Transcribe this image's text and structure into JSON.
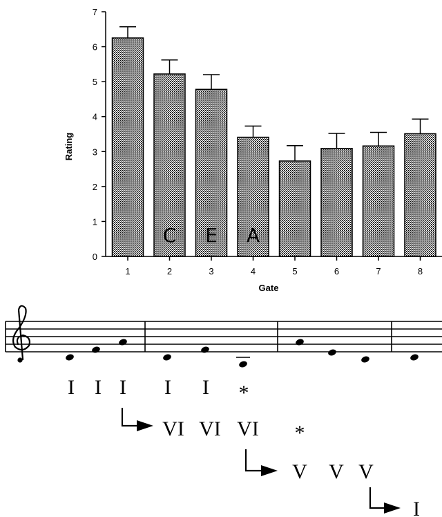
{
  "chart_data": {
    "type": "bar",
    "xlabel": "Gate",
    "ylabel": "Rating",
    "ylim": [
      0,
      7
    ],
    "yticks": [
      "0",
      "1",
      "2",
      "3",
      "4",
      "5",
      "6",
      "7"
    ],
    "categories": [
      "1",
      "2",
      "3",
      "4",
      "5",
      "6",
      "7",
      "8"
    ],
    "values": [
      6.25,
      5.22,
      4.78,
      3.41,
      2.73,
      3.09,
      3.16,
      3.51
    ],
    "errors": [
      0.32,
      0.4,
      0.42,
      0.32,
      0.44,
      0.43,
      0.39,
      0.42
    ],
    "bar_letters": [
      "",
      "C",
      "E",
      "A",
      "",
      "",
      "",
      ""
    ]
  },
  "notation": {
    "clef": "treble-clef",
    "analysis_rows": [
      [
        "I",
        "I",
        "I",
        "I",
        "I",
        "*"
      ],
      [
        "VI",
        "VI",
        "VI",
        "*"
      ],
      [
        "V",
        "V",
        "V"
      ],
      [
        "I"
      ]
    ]
  }
}
